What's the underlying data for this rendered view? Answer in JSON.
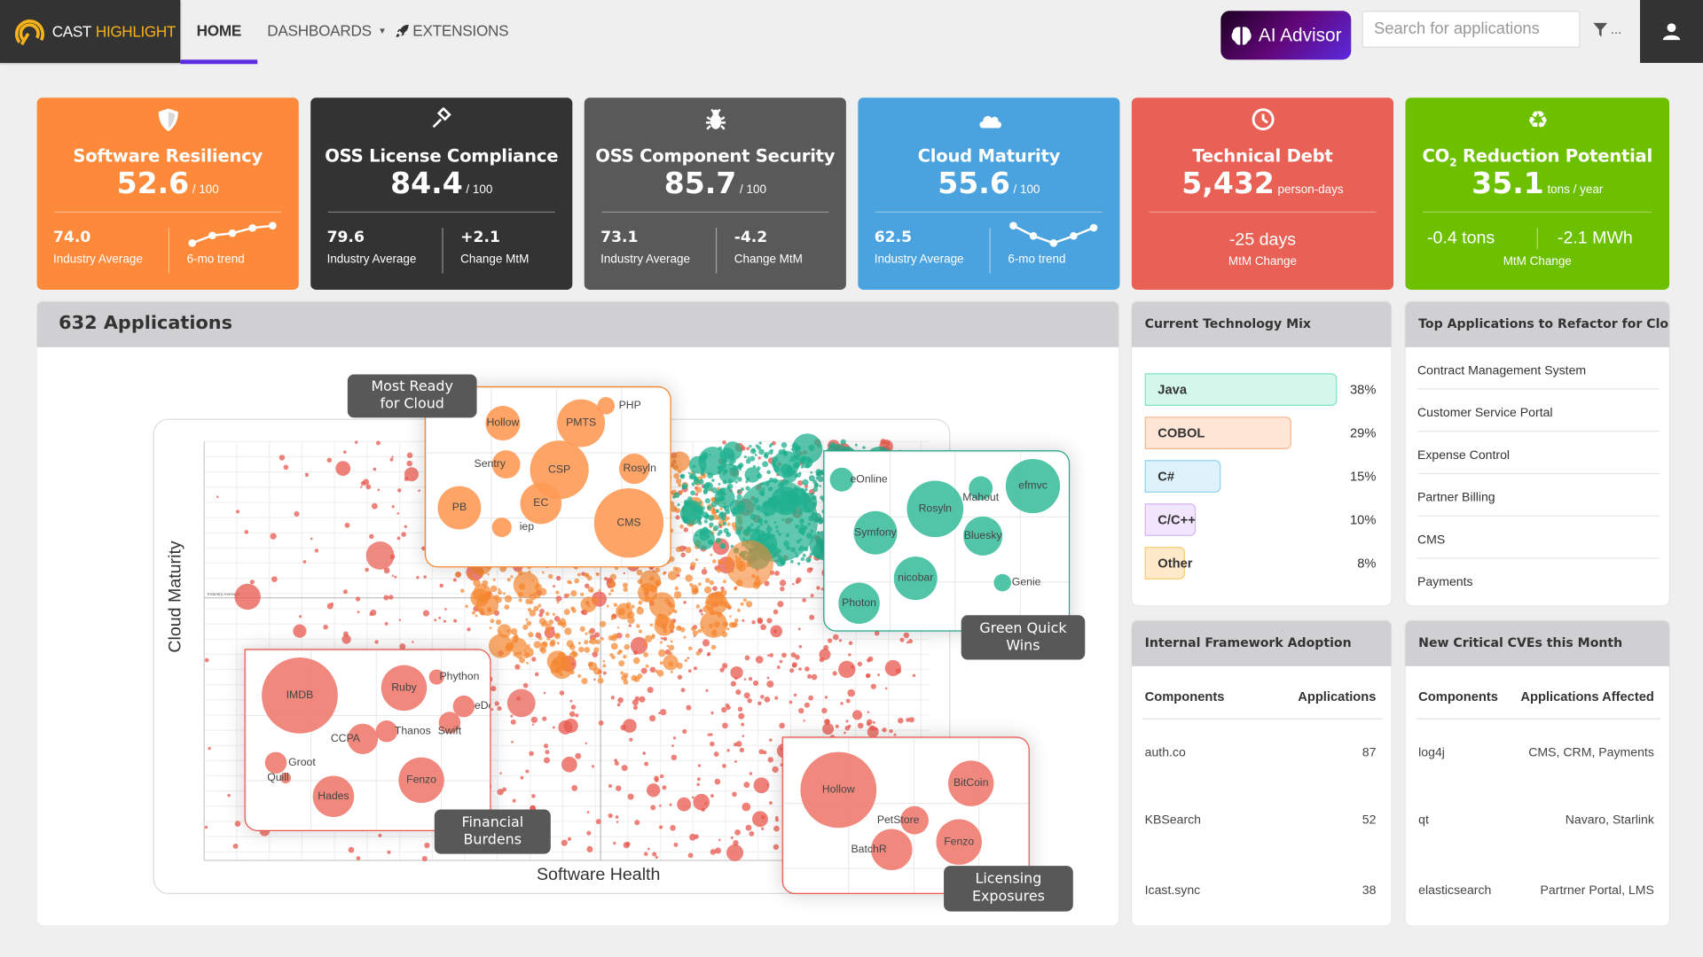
{
  "header": {
    "logo_text_1": "CAST",
    "logo_text_2": "HIGHLIGHT",
    "nav": [
      {
        "label": "HOME",
        "active": true
      },
      {
        "label": "DASHBOARDS"
      },
      {
        "label": "EXTENSIONS"
      }
    ],
    "ai_advisor_label": "AI Advisor",
    "search_placeholder": "Search for applications",
    "filter_ellipsis": "..."
  },
  "cards": [
    {
      "title": "Software Resiliency",
      "value": "52.6",
      "unit": "/ 100",
      "color": "#fd8a3b",
      "icon": "shield-icon",
      "left": {
        "value": "74.0",
        "label": "Industry Average"
      },
      "right": {
        "label": "6-mo trend",
        "trend": [
          1,
          2,
          2.3,
          3,
          3.3
        ]
      }
    },
    {
      "title": "OSS License Compliance",
      "value": "84.4",
      "unit": "/ 100",
      "color": "#333333",
      "icon": "gavel-icon",
      "left": {
        "value": "79.6",
        "label": "Industry Average"
      },
      "right": {
        "value": "+2.1",
        "label": "Change MtM"
      }
    },
    {
      "title": "OSS Component Security",
      "value": "85.7",
      "unit": "/ 100",
      "color": "#595959",
      "icon": "bug-icon",
      "left": {
        "value": "73.1",
        "label": "Industry Average"
      },
      "right": {
        "value": "-4.2",
        "label": "Change MtM"
      }
    },
    {
      "title": "Cloud Maturity",
      "value": "55.6",
      "unit": "/ 100",
      "color": "#4aa3df",
      "icon": "cloud-icon",
      "left": {
        "value": "62.5",
        "label": "Industry Average"
      },
      "right": {
        "label": "6-mo trend",
        "trend": [
          3.2,
          2.2,
          1.5,
          2.2,
          3
        ]
      }
    },
    {
      "title": "Technical Debt",
      "value": "5,432",
      "unit": "person-days",
      "color": "#e96055",
      "icon": "clock-icon",
      "center": {
        "value": "-25 days",
        "label": "MtM Change"
      }
    },
    {
      "title_prefix": "CO",
      "title_sub": "2",
      "title": "Reduction Potential",
      "value": "35.1",
      "unit": "tons / year",
      "color": "#6cc000",
      "icon": "recycle-icon",
      "values": [
        "-0.4 tons",
        "-2.1 MWh"
      ],
      "center_label": "MtM Change"
    }
  ],
  "applications": {
    "title": "632 Applications",
    "x_label": "Software Health",
    "y_label": "Cloud Maturity",
    "ref_line_label": "Industry Average",
    "groups": [
      {
        "tag": "Most Ready for Cloud",
        "color": "#fd9a55",
        "apps": [
          "PHP",
          "Hollow",
          "PMTS",
          "Sentry",
          "CSP",
          "Rosyln",
          "PB",
          "EC",
          "iep",
          "CMS"
        ]
      },
      {
        "tag": "Green Quick Wins",
        "color": "#3fbf9f",
        "apps": [
          "eOnline",
          "Rosyln",
          "Mahout",
          "efmvc",
          "Symfony",
          "Bluesky",
          "nicobar",
          "Genie",
          "Photon"
        ]
      },
      {
        "tag": "Financial Burdens",
        "color": "#ee7b70",
        "apps": [
          "IMDB",
          "Ruby",
          "Phython",
          "eDocs",
          "Swift",
          "Thanos",
          "CCPA",
          "Groot",
          "Quill",
          "Hades",
          "Fenzo"
        ]
      },
      {
        "tag": "Licensing Exposures",
        "color": "#ee7b70",
        "apps": [
          "Hollow",
          "BitCoin",
          "PetStore",
          "BatchR",
          "Fenzo"
        ]
      }
    ]
  },
  "tech_mix": {
    "title": "Current Technology Mix",
    "items": [
      {
        "label": "Java",
        "percent": 38,
        "percent_text": "38%",
        "bg": "#d3f7eb",
        "border": "#7fe4c1"
      },
      {
        "label": "COBOL",
        "percent": 29,
        "percent_text": "29%",
        "bg": "#fee5d5",
        "border": "#f5b68b"
      },
      {
        "label": "C#",
        "percent": 15,
        "percent_text": "15%",
        "bg": "#def2fb",
        "border": "#8fd3f1"
      },
      {
        "label": "C/C++",
        "percent": 10,
        "percent_text": "10%",
        "bg": "#f2e6fe",
        "border": "#d5b4f6"
      },
      {
        "label": "Other",
        "percent": 8,
        "percent_text": "8%",
        "bg": "#feeac8",
        "border": "#f8c972"
      }
    ]
  },
  "refactor": {
    "title": "Top Applications to Refactor for Cloud",
    "items": [
      "Contract Management System",
      "Customer Service Portal",
      "Expense Control",
      "Partner Billing",
      "CMS",
      "Payments"
    ]
  },
  "framework": {
    "title": "Internal Framework Adoption",
    "columns": [
      "Components",
      "Applications"
    ],
    "rows": [
      [
        "auth.co",
        "87"
      ],
      [
        "KBSearch",
        "52"
      ],
      [
        "Icast.sync",
        "38"
      ]
    ]
  },
  "cves": {
    "title": "New Critical CVEs this Month",
    "columns": [
      "Components",
      "Applications Affected"
    ],
    "rows": [
      [
        "log4j",
        "CMS, CRM, Payments"
      ],
      [
        "qt",
        "Navaro, Starlink"
      ],
      [
        "elasticsearch",
        "Partrner Portal, LMS"
      ]
    ]
  }
}
